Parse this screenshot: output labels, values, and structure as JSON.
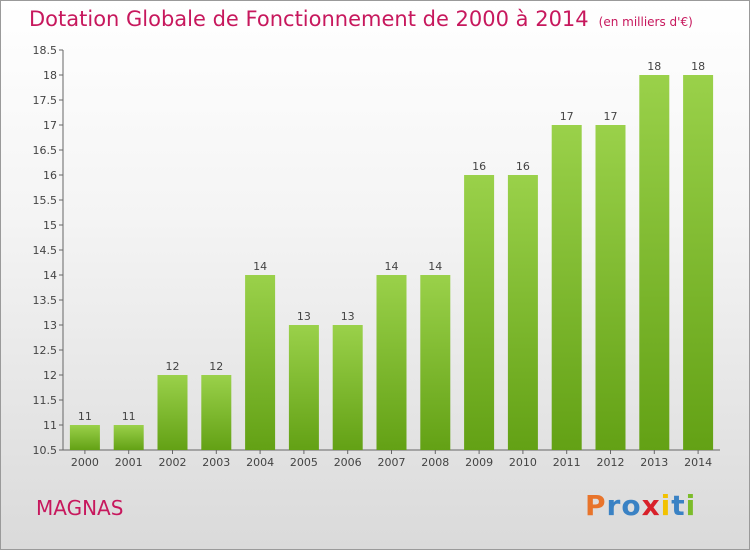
{
  "title": "Dotation Globale de Fonctionnement de 2000 à 2014",
  "unit": "(en milliers d'€)",
  "place": "MAGNAS",
  "logo": {
    "letters": [
      "P",
      "r",
      "o",
      "x",
      "i",
      "t",
      "i"
    ],
    "colors": [
      "#e8742b",
      "#3a82c4",
      "#3a82c4",
      "#d8202a",
      "#f2c200",
      "#3a82c4",
      "#7cbc2a"
    ]
  },
  "chart_data": {
    "type": "bar",
    "categories": [
      "2000",
      "2001",
      "2002",
      "2003",
      "2004",
      "2005",
      "2006",
      "2007",
      "2008",
      "2009",
      "2010",
      "2011",
      "2012",
      "2013",
      "2014"
    ],
    "values": [
      11,
      11,
      12,
      12,
      14,
      13,
      13,
      14,
      14,
      16,
      16,
      17,
      17,
      18,
      18
    ],
    "ylim": [
      10.5,
      18.5
    ],
    "yticks": [
      "10.5",
      "11",
      "11.5",
      "12",
      "12.5",
      "13",
      "13.5",
      "14",
      "14.5",
      "15",
      "15.5",
      "16",
      "16.5",
      "17",
      "17.5",
      "18",
      "18.5"
    ],
    "grid": false,
    "colors": {
      "bar_top": "#9ad14a",
      "bar_bottom": "#63a115"
    }
  }
}
